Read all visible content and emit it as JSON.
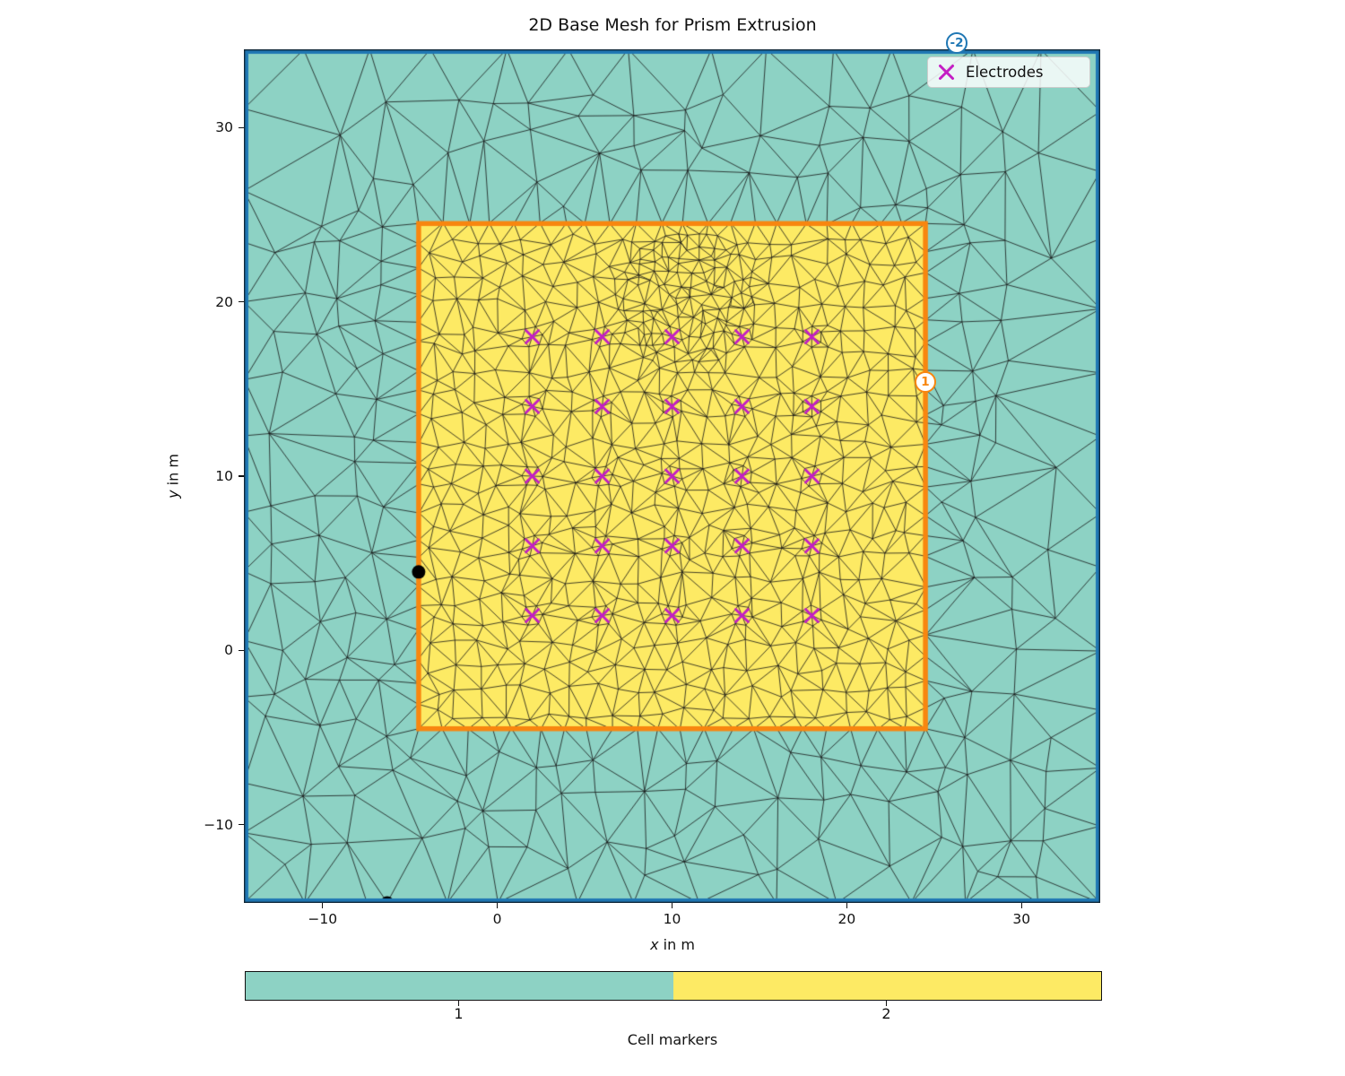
{
  "chart_data": {
    "type": "mesh",
    "title": "2D Base Mesh for Prism Extrusion",
    "xlabel": "x in m",
    "ylabel": "y in m",
    "xlabel_var": "x",
    "xlabel_rest": " in m",
    "ylabel_var": "y",
    "ylabel_rest": " in m",
    "xlim": [
      -14.5,
      34.5
    ],
    "ylim": [
      -14.5,
      34.5
    ],
    "x_ticks": [
      -10,
      0,
      10,
      20,
      30
    ],
    "x_tick_labels": [
      "−10",
      "0",
      "10",
      "20",
      "30"
    ],
    "y_ticks": [
      -10,
      0,
      10,
      20,
      30
    ],
    "y_tick_labels": [
      "−10",
      "0",
      "10",
      "20",
      "30"
    ],
    "grid": false,
    "regions": [
      {
        "cell_marker": 1,
        "color": "#8dd2c4",
        "extent": {
          "xmin": -14.5,
          "ymin": -14.5,
          "xmax": 34.5,
          "ymax": 34.5
        },
        "boundary_marker": "-2",
        "boundary_color": "#1f77b4",
        "boundary_marker_label_pos": [
          26.3,
          34.5
        ]
      },
      {
        "cell_marker": 2,
        "color": "#fdea64",
        "extent": {
          "xmin": -4.5,
          "ymin": -4.5,
          "xmax": 24.5,
          "ymax": 24.5
        },
        "boundary_marker": "1",
        "boundary_color": "#f8860f",
        "boundary_marker_label_pos": [
          24.5,
          15.4
        ]
      }
    ],
    "electrodes": {
      "label": "Electrodes",
      "color": "#c41ec4",
      "positions": [
        [
          2,
          2
        ],
        [
          6,
          2
        ],
        [
          10,
          2
        ],
        [
          14,
          2
        ],
        [
          18,
          2
        ],
        [
          2,
          6
        ],
        [
          6,
          6
        ],
        [
          10,
          6
        ],
        [
          14,
          6
        ],
        [
          18,
          6
        ],
        [
          2,
          10
        ],
        [
          6,
          10
        ],
        [
          10,
          10
        ],
        [
          14,
          10
        ],
        [
          18,
          10
        ],
        [
          2,
          14
        ],
        [
          6,
          14
        ],
        [
          10,
          14
        ],
        [
          14,
          14
        ],
        [
          18,
          14
        ],
        [
          2,
          18
        ],
        [
          6,
          18
        ],
        [
          10,
          18
        ],
        [
          14,
          18
        ],
        [
          18,
          18
        ]
      ]
    },
    "extra_nodes": [
      [
        -4.5,
        4.5
      ],
      [
        -6.3,
        -14.5
      ]
    ],
    "node_color": "#000000",
    "mesh_line_color": "#141414",
    "legend_position": "upper right",
    "colorbar": {
      "label": "Cell markers",
      "orientation": "horizontal",
      "tick_labels": [
        "1",
        "2"
      ],
      "colors": [
        "#8dd2c4",
        "#fdea64"
      ]
    }
  }
}
